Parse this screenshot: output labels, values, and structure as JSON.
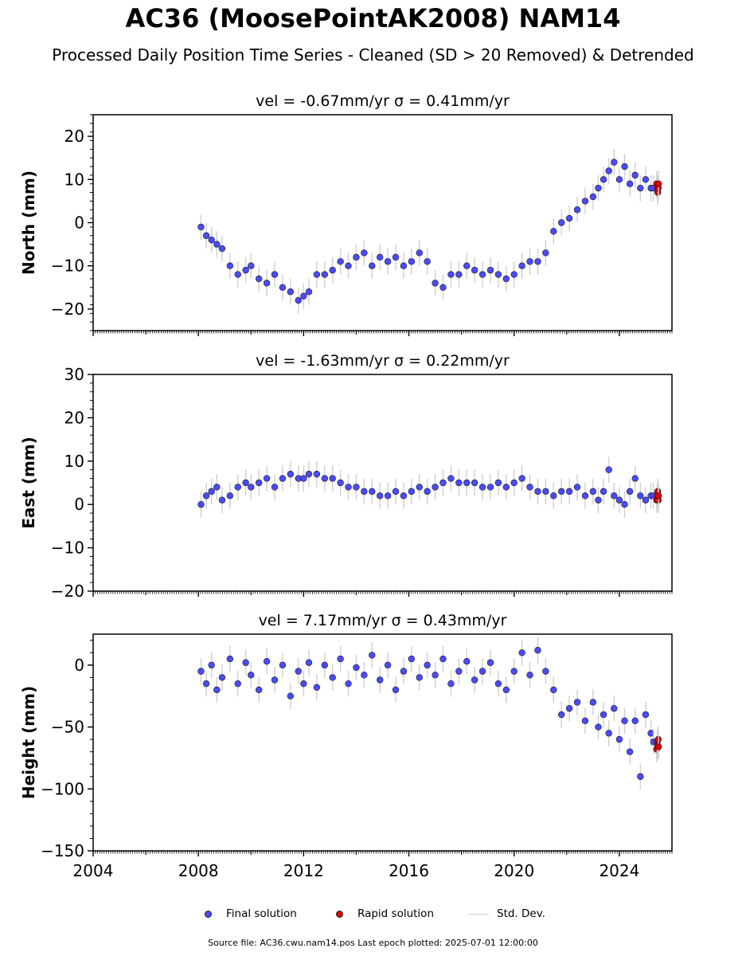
{
  "figure": {
    "title": "AC36 (MoosePointAK2008) NAM14",
    "subtitle": "Processed Daily Position Time Series - Cleaned (SD > 20 Removed) & Detrended",
    "source_line": "Source file: AC36.cwu.nam14.pos  Last epoch plotted: 2025-07-01 12:00:00"
  },
  "legend": {
    "final_label": "Final solution",
    "rapid_label": "Rapid solution",
    "std_label": "Std. Dev."
  },
  "colors": {
    "final": "#4b4bf5",
    "rapid": "#e00000",
    "std": "#cfcfcf",
    "edge": "#1a1a2a"
  },
  "chart_data": [
    {
      "type": "scatter",
      "title": "vel = -0.67mm/yr   σ = 0.41mm/yr",
      "xlabel": "",
      "ylabel": "North (mm)",
      "xlim": [
        2004,
        2026
      ],
      "ylim": [
        -25,
        25
      ],
      "yticks": [
        -20,
        -10,
        0,
        10,
        20
      ],
      "xticks": [
        2004,
        2008,
        2012,
        2016,
        2020,
        2024
      ],
      "xticklabels_visible": false,
      "grid": false,
      "series": [
        {
          "name": "Final solution",
          "x": [
            2008.1,
            2008.3,
            2008.5,
            2008.7,
            2008.9,
            2009.2,
            2009.5,
            2009.8,
            2010.0,
            2010.3,
            2010.6,
            2010.9,
            2011.2,
            2011.5,
            2011.8,
            2012.0,
            2012.2,
            2012.5,
            2012.8,
            2013.1,
            2013.4,
            2013.7,
            2014.0,
            2014.3,
            2014.6,
            2014.9,
            2015.2,
            2015.5,
            2015.8,
            2016.1,
            2016.4,
            2016.7,
            2017.0,
            2017.3,
            2017.6,
            2017.9,
            2018.2,
            2018.5,
            2018.8,
            2019.1,
            2019.4,
            2019.7,
            2020.0,
            2020.3,
            2020.6,
            2020.9,
            2021.2,
            2021.5,
            2021.8,
            2022.1,
            2022.4,
            2022.7,
            2023.0,
            2023.2,
            2023.4,
            2023.6,
            2023.8,
            2024.0,
            2024.2,
            2024.4,
            2024.6,
            2024.8,
            2025.0,
            2025.2,
            2025.3
          ],
          "y": [
            -1,
            -3,
            -4,
            -5,
            -6,
            -10,
            -12,
            -11,
            -10,
            -13,
            -14,
            -12,
            -15,
            -16,
            -18,
            -17,
            -16,
            -12,
            -12,
            -11,
            -9,
            -10,
            -8,
            -7,
            -10,
            -8,
            -9,
            -8,
            -10,
            -9,
            -7,
            -9,
            -14,
            -15,
            -12,
            -12,
            -10,
            -11,
            -12,
            -11,
            -12,
            -13,
            -12,
            -10,
            -9,
            -9,
            -7,
            -2,
            0,
            1,
            3,
            5,
            6,
            8,
            10,
            12,
            14,
            10,
            13,
            9,
            11,
            8,
            10,
            8,
            8
          ]
        },
        {
          "name": "Rapid solution",
          "x": [
            2025.42,
            2025.44,
            2025.46,
            2025.48,
            2025.49
          ],
          "y": [
            9,
            8,
            7,
            8,
            9
          ]
        }
      ]
    },
    {
      "type": "scatter",
      "title": "vel = -1.63mm/yr   σ = 0.22mm/yr",
      "xlabel": "",
      "ylabel": "East (mm)",
      "xlim": [
        2004,
        2026
      ],
      "ylim": [
        -20,
        30
      ],
      "yticks": [
        -20,
        -10,
        0,
        10,
        20,
        30
      ],
      "xticks": [
        2004,
        2008,
        2012,
        2016,
        2020,
        2024
      ],
      "xticklabels_visible": false,
      "grid": false,
      "series": [
        {
          "name": "Final solution",
          "x": [
            2008.1,
            2008.3,
            2008.5,
            2008.7,
            2008.9,
            2009.2,
            2009.5,
            2009.8,
            2010.0,
            2010.3,
            2010.6,
            2010.9,
            2011.2,
            2011.5,
            2011.8,
            2012.0,
            2012.2,
            2012.5,
            2012.8,
            2013.1,
            2013.4,
            2013.7,
            2014.0,
            2014.3,
            2014.6,
            2014.9,
            2015.2,
            2015.5,
            2015.8,
            2016.1,
            2016.4,
            2016.7,
            2017.0,
            2017.3,
            2017.6,
            2017.9,
            2018.2,
            2018.5,
            2018.8,
            2019.1,
            2019.4,
            2019.7,
            2020.0,
            2020.3,
            2020.6,
            2020.9,
            2021.2,
            2021.5,
            2021.8,
            2022.1,
            2022.4,
            2022.7,
            2023.0,
            2023.2,
            2023.4,
            2023.6,
            2023.8,
            2024.0,
            2024.2,
            2024.4,
            2024.6,
            2024.8,
            2025.0,
            2025.2,
            2025.3
          ],
          "y": [
            0,
            2,
            3,
            4,
            1,
            2,
            4,
            5,
            4,
            5,
            6,
            4,
            6,
            7,
            6,
            6,
            7,
            7,
            6,
            6,
            5,
            4,
            4,
            3,
            3,
            2,
            2,
            3,
            2,
            3,
            4,
            3,
            4,
            5,
            6,
            5,
            5,
            5,
            4,
            4,
            5,
            4,
            5,
            6,
            4,
            3,
            3,
            2,
            3,
            3,
            4,
            2,
            3,
            1,
            3,
            8,
            2,
            1,
            0,
            3,
            6,
            2,
            1,
            2,
            2
          ]
        },
        {
          "name": "Rapid solution",
          "x": [
            2025.42,
            2025.44,
            2025.46,
            2025.48,
            2025.49
          ],
          "y": [
            1,
            2,
            3,
            1,
            2
          ]
        }
      ]
    },
    {
      "type": "scatter",
      "title": "vel = 7.17mm/yr   σ = 0.43mm/yr",
      "xlabel": "",
      "ylabel": "Height (mm)",
      "xlim": [
        2004,
        2026
      ],
      "ylim": [
        -150,
        25
      ],
      "yticks": [
        -150,
        -100,
        -50,
        0
      ],
      "xticks": [
        2004,
        2008,
        2012,
        2016,
        2020,
        2024
      ],
      "xticklabels": [
        "2004",
        "2008",
        "2012",
        "2016",
        "2020",
        "2024"
      ],
      "xticklabels_visible": true,
      "grid": false,
      "series": [
        {
          "name": "Final solution",
          "x": [
            2008.1,
            2008.3,
            2008.5,
            2008.7,
            2008.9,
            2009.2,
            2009.5,
            2009.8,
            2010.0,
            2010.3,
            2010.6,
            2010.9,
            2011.2,
            2011.5,
            2011.8,
            2012.0,
            2012.2,
            2012.5,
            2012.8,
            2013.1,
            2013.4,
            2013.7,
            2014.0,
            2014.3,
            2014.6,
            2014.9,
            2015.2,
            2015.5,
            2015.8,
            2016.1,
            2016.4,
            2016.7,
            2017.0,
            2017.3,
            2017.6,
            2017.9,
            2018.2,
            2018.5,
            2018.8,
            2019.1,
            2019.4,
            2019.7,
            2020.0,
            2020.3,
            2020.6,
            2020.9,
            2021.2,
            2021.5,
            2021.8,
            2022.1,
            2022.4,
            2022.7,
            2023.0,
            2023.2,
            2023.4,
            2023.6,
            2023.8,
            2024.0,
            2024.2,
            2024.4,
            2024.6,
            2024.8,
            2025.0,
            2025.2,
            2025.3
          ],
          "y": [
            -5,
            -15,
            0,
            -20,
            -10,
            5,
            -15,
            2,
            -8,
            -20,
            3,
            -12,
            0,
            -25,
            -5,
            -15,
            2,
            -18,
            0,
            -10,
            5,
            -15,
            -2,
            -8,
            8,
            -12,
            0,
            -20,
            -5,
            5,
            -10,
            0,
            -8,
            5,
            -15,
            -5,
            3,
            -12,
            -5,
            2,
            -15,
            -20,
            -5,
            10,
            -8,
            12,
            -5,
            -20,
            -40,
            -35,
            -30,
            -45,
            -30,
            -50,
            -40,
            -55,
            -35,
            -60,
            -45,
            -70,
            -45,
            -90,
            -40,
            -55,
            -62
          ]
        },
        {
          "name": "Rapid solution",
          "x": [
            2025.42,
            2025.44,
            2025.46,
            2025.48,
            2025.49
          ],
          "y": [
            -68,
            -62,
            -65,
            -60,
            -66
          ]
        }
      ]
    }
  ]
}
